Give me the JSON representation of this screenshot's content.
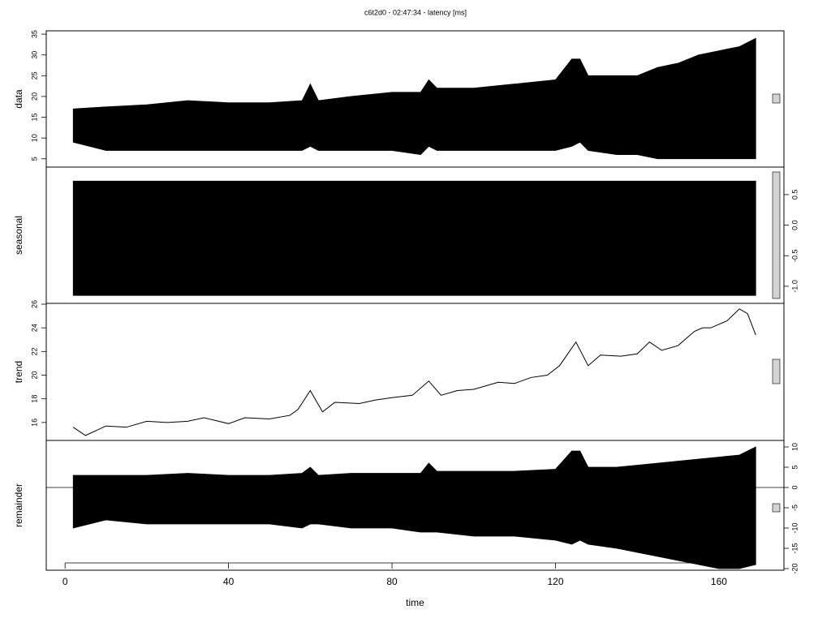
{
  "chart_data": [
    {
      "type": "area",
      "title": "c6t2d0 - 02:47:34 - latency [ms]",
      "y_label": "data",
      "axis_side": "left",
      "x": [
        2,
        10,
        20,
        30,
        40,
        50,
        58,
        60,
        62,
        70,
        80,
        87,
        89,
        91,
        100,
        110,
        120,
        124,
        126,
        128,
        135,
        140,
        145,
        150,
        155,
        160,
        165,
        169
      ],
      "series": [
        {
          "color": "#000000",
          "values": [
            17,
            17.5,
            18,
            19,
            18.5,
            18.5,
            19,
            23,
            19,
            20,
            21,
            21,
            24,
            22,
            22,
            23,
            24,
            29,
            29,
            25,
            25,
            25,
            27,
            28,
            30,
            31,
            32,
            34
          ]
        },
        {
          "color": "#000000",
          "values": [
            9,
            7,
            7,
            7,
            7,
            7,
            7,
            8,
            7,
            7,
            7,
            6,
            8,
            7,
            7,
            7,
            7,
            8,
            9,
            7,
            6,
            6,
            5,
            5,
            5,
            5,
            5,
            5
          ]
        }
      ],
      "ylim": [
        3,
        35.8
      ],
      "yticks": [
        5,
        10,
        15,
        20,
        25,
        30,
        35
      ]
    },
    {
      "type": "area",
      "y_label": "seasonal",
      "axis_side": "right",
      "x": [
        2,
        169
      ],
      "series": [
        {
          "color": "#000000",
          "values": [
            0.72,
            0.72
          ]
        },
        {
          "color": "#000000",
          "values": [
            -1.15,
            -1.15
          ]
        }
      ],
      "ylim": [
        -1.28,
        0.95
      ],
      "yticks": [
        {
          "value": -1,
          "label": "-1.0"
        },
        -0.5,
        {
          "value": 0,
          "label": "0.0"
        },
        0.5
      ]
    },
    {
      "type": "line",
      "y_label": "trend",
      "axis_side": "left",
      "x": [
        2,
        5,
        10,
        15,
        20,
        25,
        30,
        34,
        40,
        44,
        50,
        55,
        57,
        60,
        63,
        66,
        72,
        76,
        80,
        85,
        89,
        92,
        96,
        100,
        106,
        110,
        114,
        118,
        121,
        125,
        128,
        131,
        136,
        140,
        143,
        146,
        150,
        154,
        156,
        158,
        162,
        165,
        167,
        169
      ],
      "series": [
        {
          "color": "#000000",
          "values": [
            15.6,
            14.9,
            15.7,
            15.6,
            16.1,
            16,
            16.1,
            16.4,
            15.9,
            16.4,
            16.3,
            16.6,
            17.1,
            18.7,
            16.9,
            17.7,
            17.6,
            17.9,
            18.1,
            18.3,
            19.5,
            18.3,
            18.7,
            18.8,
            19.4,
            19.3,
            19.8,
            20,
            20.8,
            22.8,
            20.8,
            21.7,
            21.6,
            21.8,
            22.8,
            22.1,
            22.5,
            23.7,
            24,
            24,
            24.6,
            25.6,
            25.2,
            23.4
          ]
        }
      ],
      "ylim": [
        14.48,
        26.07
      ],
      "yticks": [
        16,
        18,
        20,
        22,
        24,
        26
      ]
    },
    {
      "type": "area",
      "y_label": "remainder",
      "axis_side": "right",
      "x_label": "time",
      "zero_line": true,
      "x": [
        2,
        10,
        20,
        30,
        40,
        50,
        58,
        60,
        62,
        70,
        80,
        87,
        89,
        91,
        100,
        110,
        120,
        124,
        126,
        128,
        135,
        140,
        145,
        150,
        155,
        160,
        165,
        169
      ],
      "series": [
        {
          "color": "#000000",
          "values": [
            3,
            3,
            3,
            3.5,
            3,
            3,
            3.5,
            5,
            3,
            3.5,
            3.5,
            3.5,
            6,
            4,
            4,
            4,
            4.5,
            9,
            9,
            5,
            5,
            5.5,
            6,
            6.5,
            7,
            7.5,
            8,
            10
          ]
        },
        {
          "color": "#000000",
          "values": [
            -10,
            -8,
            -9,
            -9,
            -9,
            -9,
            -10,
            -9,
            -9,
            -10,
            -10,
            -11,
            -11,
            -11,
            -12,
            -12,
            -13,
            -14,
            -13,
            -14,
            -15,
            -16,
            -17,
            -18,
            -19,
            -20,
            -20,
            -19
          ]
        }
      ],
      "ylim": [
        -20.4,
        11.6
      ],
      "yticks": [
        -20,
        -15,
        -10,
        -5,
        0,
        5,
        10
      ],
      "xlim": [
        -4.6,
        175.9
      ],
      "xticks": [
        0,
        40,
        80,
        120,
        160
      ]
    }
  ]
}
